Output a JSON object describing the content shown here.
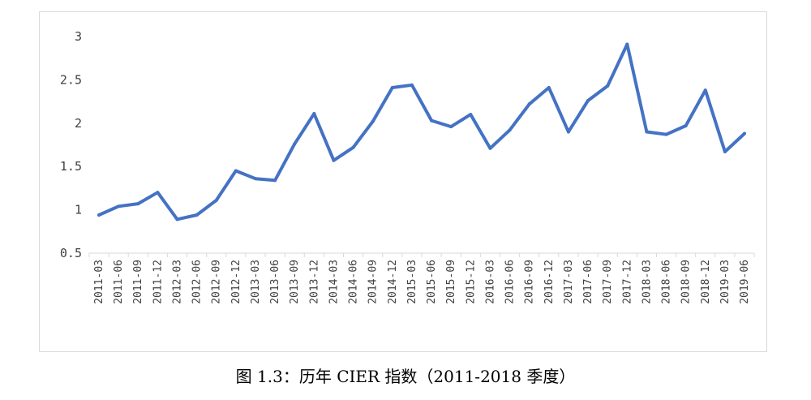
{
  "caption": "图 1.3：历年 CIER 指数（2011-2018 季度）",
  "chart_data": {
    "type": "line",
    "title": "",
    "xlabel": "",
    "ylabel": "",
    "ylim": [
      0.5,
      3
    ],
    "yticks": [
      "0.5",
      "1",
      "1.5",
      "2",
      "2.5",
      "3"
    ],
    "grid": false,
    "line_color": "#4472c4",
    "categories": [
      "2011-03",
      "2011-06",
      "2011-09",
      "2011-12",
      "2012-03",
      "2012-06",
      "2012-09",
      "2012-12",
      "2013-03",
      "2013-06",
      "2013-09",
      "2013-12",
      "2014-03",
      "2014-06",
      "2014-09",
      "2014-12",
      "2015-03",
      "2015-06",
      "2015-09",
      "2015-12",
      "2016-03",
      "2016-06",
      "2016-09",
      "2016-12",
      "2017-03",
      "2017-06",
      "2017-09",
      "2017-12",
      "2018-03",
      "2018-06",
      "2018-09",
      "2018-12",
      "2019-03",
      "2019-06"
    ],
    "series": [
      {
        "values": [
          0.94,
          1.04,
          1.07,
          1.2,
          0.89,
          0.94,
          1.11,
          1.45,
          1.36,
          1.34,
          1.76,
          2.11,
          1.57,
          1.72,
          2.02,
          2.41,
          2.44,
          2.03,
          1.96,
          2.1,
          1.71,
          1.92,
          2.22,
          2.41,
          1.9,
          2.26,
          2.43,
          2.91,
          1.9,
          1.87,
          1.97,
          2.38,
          1.67,
          1.88
        ]
      }
    ]
  }
}
